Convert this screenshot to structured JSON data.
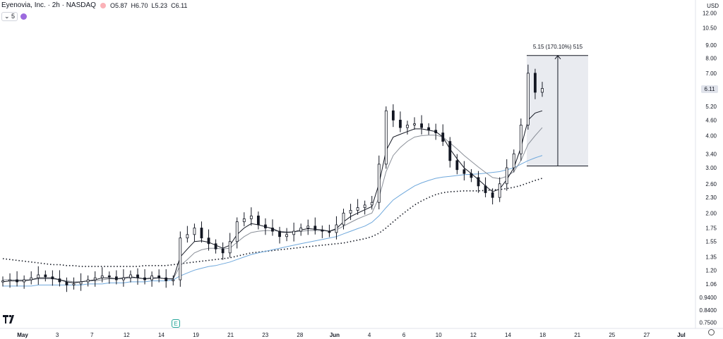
{
  "header": {
    "title": "Eyenovia, Inc. · 2h · NASDAQ",
    "open_label": "O",
    "open": "5.87",
    "high_label": "H",
    "high": "6.70",
    "low_label": "L",
    "low": "5.23",
    "close_label": "C",
    "close": "6.11",
    "indicator_count": "5"
  },
  "currency": "USD",
  "last_price_badge": "6.11",
  "measure_label": "5.15 (170.10%) 515",
  "earnings_marker": "E",
  "colors": {
    "candle": "#131722",
    "ema_fast": "#131722",
    "ema_slow": "#8a8f98",
    "ma_blue": "#6fa8dc",
    "ma_dotted": "#131722",
    "measure_fill": "#e9ebf0",
    "accent_red": "#f7525f"
  },
  "chart_data": {
    "type": "candlestick",
    "scale": "log",
    "ylim": [
      0.73,
      12.5
    ],
    "y_ticks": [
      "12.00",
      "10.50",
      "9.00",
      "8.00",
      "7.00",
      "6.11",
      "5.20",
      "4.60",
      "4.00",
      "3.40",
      "3.00",
      "2.60",
      "2.30",
      "2.00",
      "1.75",
      "1.55",
      "1.35",
      "1.20",
      "1.06",
      "0.9400",
      "0.8400",
      "0.7500"
    ],
    "x_ticks": [
      "May",
      "3",
      "7",
      "12",
      "14",
      "19",
      "21",
      "23",
      "28",
      "Jun",
      "4",
      "6",
      "10",
      "12",
      "14",
      "18",
      "21",
      "25",
      "27",
      "Jul"
    ],
    "grid": false,
    "measure": {
      "from": 3.05,
      "to": 8.2,
      "change": "5.15",
      "percent": "170.10%",
      "bars": "515"
    },
    "series": [
      {
        "name": "close",
        "values": [
          1.09,
          1.1,
          1.08,
          1.1,
          1.12,
          1.15,
          1.13,
          1.11,
          1.08,
          1.05,
          1.06,
          1.08,
          1.1,
          1.12,
          1.14,
          1.13,
          1.1,
          1.12,
          1.15,
          1.12,
          1.1,
          1.14,
          1.12,
          1.09,
          1.1,
          1.6,
          1.65,
          1.75,
          1.6,
          1.52,
          1.45,
          1.4,
          1.55,
          1.85,
          1.9,
          1.95,
          1.8,
          1.75,
          1.7,
          1.62,
          1.65,
          1.7,
          1.75,
          1.78,
          1.72,
          1.7,
          1.68,
          1.8,
          2.0,
          2.05,
          2.1,
          2.15,
          2.2,
          3.1,
          5.0,
          4.6,
          4.3,
          4.4,
          4.45,
          4.3,
          4.2,
          4.1,
          3.8,
          3.2,
          2.95,
          2.85,
          2.75,
          2.55,
          2.4,
          2.3,
          2.6,
          3.0,
          3.4,
          4.4,
          7.0,
          5.9,
          6.11
        ]
      },
      {
        "name": "ema_fast",
        "values": [
          1.08,
          1.09,
          1.09,
          1.09,
          1.1,
          1.12,
          1.12,
          1.12,
          1.1,
          1.08,
          1.07,
          1.08,
          1.09,
          1.1,
          1.12,
          1.12,
          1.11,
          1.12,
          1.13,
          1.12,
          1.11,
          1.12,
          1.12,
          1.11,
          1.11,
          1.35,
          1.45,
          1.55,
          1.56,
          1.54,
          1.5,
          1.46,
          1.5,
          1.65,
          1.75,
          1.82,
          1.8,
          1.77,
          1.74,
          1.69,
          1.68,
          1.69,
          1.72,
          1.74,
          1.73,
          1.72,
          1.7,
          1.74,
          1.85,
          1.94,
          2.0,
          2.06,
          2.12,
          2.6,
          3.5,
          3.95,
          4.05,
          4.15,
          4.25,
          4.25,
          4.2,
          4.15,
          3.95,
          3.55,
          3.25,
          3.0,
          2.85,
          2.7,
          2.55,
          2.42,
          2.48,
          2.7,
          3.0,
          3.6,
          4.6,
          4.9,
          5.0
        ]
      },
      {
        "name": "ema_slow",
        "values": [
          1.1,
          1.1,
          1.1,
          1.1,
          1.1,
          1.11,
          1.11,
          1.11,
          1.1,
          1.09,
          1.08,
          1.08,
          1.09,
          1.09,
          1.1,
          1.11,
          1.11,
          1.11,
          1.12,
          1.12,
          1.11,
          1.11,
          1.12,
          1.11,
          1.11,
          1.25,
          1.32,
          1.4,
          1.44,
          1.46,
          1.46,
          1.45,
          1.46,
          1.54,
          1.62,
          1.68,
          1.7,
          1.71,
          1.71,
          1.7,
          1.69,
          1.69,
          1.7,
          1.71,
          1.71,
          1.71,
          1.7,
          1.72,
          1.78,
          1.84,
          1.9,
          1.95,
          2.0,
          2.3,
          2.9,
          3.35,
          3.6,
          3.8,
          3.95,
          4.0,
          4.02,
          4.02,
          3.95,
          3.75,
          3.55,
          3.35,
          3.18,
          3.02,
          2.88,
          2.75,
          2.72,
          2.78,
          2.9,
          3.2,
          3.7,
          4.0,
          4.3
        ]
      },
      {
        "name": "ma_blue",
        "values": [
          1.04,
          1.04,
          1.04,
          1.04,
          1.04,
          1.05,
          1.05,
          1.05,
          1.05,
          1.05,
          1.05,
          1.05,
          1.06,
          1.06,
          1.06,
          1.07,
          1.07,
          1.07,
          1.08,
          1.08,
          1.08,
          1.09,
          1.09,
          1.09,
          1.1,
          1.14,
          1.17,
          1.2,
          1.22,
          1.24,
          1.25,
          1.27,
          1.29,
          1.32,
          1.35,
          1.38,
          1.4,
          1.42,
          1.44,
          1.46,
          1.48,
          1.5,
          1.52,
          1.54,
          1.56,
          1.58,
          1.6,
          1.62,
          1.66,
          1.7,
          1.74,
          1.78,
          1.84,
          1.95,
          2.1,
          2.25,
          2.35,
          2.45,
          2.55,
          2.62,
          2.68,
          2.73,
          2.76,
          2.78,
          2.8,
          2.82,
          2.83,
          2.84,
          2.86,
          2.88,
          2.9,
          2.95,
          3.0,
          3.1,
          3.2,
          3.28,
          3.35
        ]
      },
      {
        "name": "ma_dotted",
        "values": [
          1.33,
          1.32,
          1.31,
          1.3,
          1.29,
          1.28,
          1.27,
          1.26,
          1.26,
          1.25,
          1.25,
          1.24,
          1.24,
          1.24,
          1.24,
          1.24,
          1.24,
          1.24,
          1.24,
          1.24,
          1.25,
          1.25,
          1.25,
          1.25,
          1.26,
          1.27,
          1.28,
          1.29,
          1.3,
          1.31,
          1.32,
          1.33,
          1.34,
          1.36,
          1.38,
          1.4,
          1.41,
          1.42,
          1.43,
          1.44,
          1.45,
          1.46,
          1.47,
          1.48,
          1.49,
          1.5,
          1.51,
          1.52,
          1.53,
          1.55,
          1.57,
          1.59,
          1.62,
          1.67,
          1.75,
          1.85,
          1.95,
          2.05,
          2.15,
          2.23,
          2.3,
          2.36,
          2.4,
          2.42,
          2.43,
          2.44,
          2.44,
          2.44,
          2.45,
          2.46,
          2.47,
          2.49,
          2.52,
          2.56,
          2.62,
          2.68,
          2.73
        ]
      }
    ]
  }
}
